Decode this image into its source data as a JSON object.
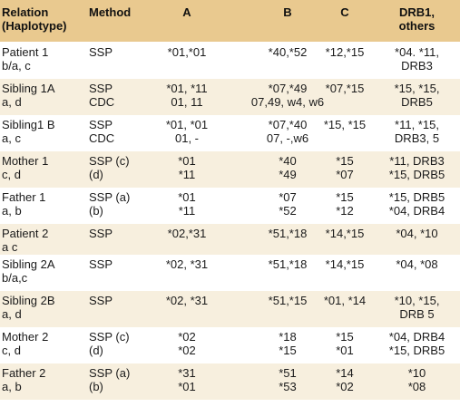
{
  "header": {
    "relation": "Relation",
    "relation_sub": "(Haplotype)",
    "method": "Method",
    "a": "A",
    "b": "B",
    "c": "C",
    "drb": "DRB1,",
    "drb_sub": "others"
  },
  "rows": [
    {
      "rel": [
        "Patient 1",
        "b/a, c"
      ],
      "meth": [
        "SSP"
      ],
      "a": [
        "*01,*01"
      ],
      "b": [
        "*40,*52"
      ],
      "c": [
        "*12,*15"
      ],
      "d": [
        "*04. *11,",
        "DRB3"
      ]
    },
    {
      "rel": [
        "Sibling 1A",
        "a, d"
      ],
      "meth": [
        "SSP",
        "CDC"
      ],
      "a": [
        "*01, *11",
        "01, 11"
      ],
      "b": [
        "*07,*49",
        "07,49, w4, w6"
      ],
      "c": [
        "*07,*15",
        ""
      ],
      "d": [
        "*15, *15,",
        "DRB5"
      ]
    },
    {
      "rel": [
        "Sibling1 B",
        "a, c"
      ],
      "meth": [
        "SSP",
        "CDC"
      ],
      "a": [
        "*01, *01",
        "01, -"
      ],
      "b": [
        "*07,*40",
        "07, -,w6"
      ],
      "c": [
        "*15, *15",
        ""
      ],
      "d": [
        "*11, *15,",
        "DRB3, 5"
      ]
    },
    {
      "rel": [
        "Mother 1",
        "c, d"
      ],
      "meth": [
        "SSP (c)",
        "(d)"
      ],
      "a": [
        "*01",
        "*11"
      ],
      "b": [
        "*40",
        "*49"
      ],
      "c": [
        "*15",
        "*07"
      ],
      "d": [
        "*11, DRB3",
        "*15, DRB5"
      ]
    },
    {
      "rel": [
        "Father 1",
        "a, b"
      ],
      "meth": [
        "SSP (a)",
        "(b)"
      ],
      "a": [
        "*01",
        "*11"
      ],
      "b": [
        "*07",
        "*52"
      ],
      "c": [
        "*15",
        "*12"
      ],
      "d": [
        "*15, DRB5",
        "*04, DRB4"
      ]
    },
    {
      "rel": [
        "Patient 2",
        "a c"
      ],
      "meth": [
        "SSP"
      ],
      "a": [
        "*02,*31"
      ],
      "b": [
        "*51,*18"
      ],
      "c": [
        "*14,*15"
      ],
      "d": [
        "*04, *10"
      ]
    },
    {
      "rel": [
        "Sibling 2A",
        "b/a,c"
      ],
      "meth": [
        "SSP"
      ],
      "a": [
        "*02, *31"
      ],
      "b": [
        "*51,*18"
      ],
      "c": [
        "*14,*15"
      ],
      "d": [
        "*04, *08"
      ]
    },
    {
      "rel": [
        "Sibling 2B",
        "a, d"
      ],
      "meth": [
        "SSP"
      ],
      "a": [
        "*02, *31"
      ],
      "b": [
        "*51,*15"
      ],
      "c": [
        "*01, *14"
      ],
      "d": [
        "*10, *15,",
        "DRB 5"
      ]
    },
    {
      "rel": [
        "Mother 2",
        "c, d"
      ],
      "meth": [
        "SSP (c)",
        "(d)"
      ],
      "a": [
        "*02",
        "*02"
      ],
      "b": [
        "*18",
        "*15"
      ],
      "c": [
        "*15",
        "*01"
      ],
      "d": [
        "*04,  DRB4",
        "*15, DRB5"
      ]
    },
    {
      "rel": [
        "Father 2",
        "a, b"
      ],
      "meth": [
        "SSP (a)",
        "(b)"
      ],
      "a": [
        "*31",
        "*01"
      ],
      "b": [
        "*51",
        "*53"
      ],
      "c": [
        "*14",
        "*02"
      ],
      "d": [
        "*10",
        "*08"
      ]
    }
  ]
}
